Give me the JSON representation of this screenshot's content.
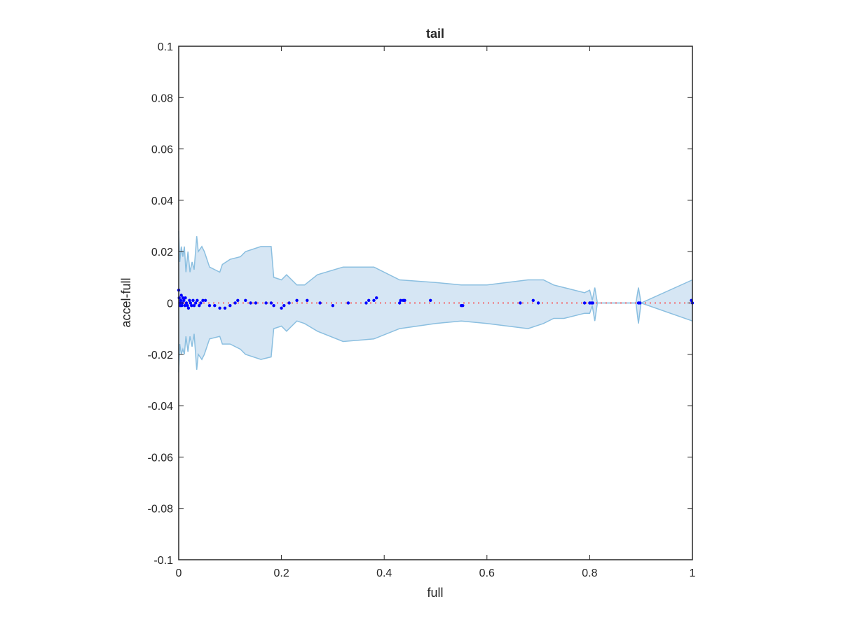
{
  "chart_data": {
    "type": "scatter",
    "title": "tail",
    "xlabel": "full",
    "ylabel": "accel-full",
    "xlim": [
      0,
      1
    ],
    "ylim": [
      -0.1,
      0.1
    ],
    "xticks": [
      0,
      0.2,
      0.4,
      0.6,
      0.8,
      1
    ],
    "xtick_labels": [
      "0",
      "0.2",
      "0.4",
      "0.6",
      "0.8",
      "1"
    ],
    "yticks": [
      -0.1,
      -0.08,
      -0.06,
      -0.04,
      -0.02,
      0,
      0.02,
      0.04,
      0.06,
      0.08,
      0.1
    ],
    "ytick_labels": [
      "-0.1",
      "-0.08",
      "-0.06",
      "-0.04",
      "-0.02",
      "0",
      "0.02",
      "0.04",
      "0.06",
      "0.08",
      "0.1"
    ],
    "grid": false,
    "colors": {
      "points": "#0000ff",
      "band_fill": "#d6e6f4",
      "band_edge": "#8bbfe0",
      "zero_line": "#ff3333",
      "axes": "#262626"
    },
    "zero_line": {
      "y": 0,
      "style": "dotted"
    },
    "band_upper": [
      [
        0,
        0.028
      ],
      [
        0.002,
        0.016
      ],
      [
        0.005,
        0.022
      ],
      [
        0.008,
        0.018
      ],
      [
        0.011,
        0.022
      ],
      [
        0.014,
        0.012
      ],
      [
        0.018,
        0.02
      ],
      [
        0.022,
        0.012
      ],
      [
        0.026,
        0.016
      ],
      [
        0.03,
        0.013
      ],
      [
        0.035,
        0.026
      ],
      [
        0.038,
        0.02
      ],
      [
        0.045,
        0.022
      ],
      [
        0.05,
        0.02
      ],
      [
        0.06,
        0.014
      ],
      [
        0.08,
        0.012
      ],
      [
        0.085,
        0.015
      ],
      [
        0.1,
        0.017
      ],
      [
        0.12,
        0.018
      ],
      [
        0.13,
        0.02
      ],
      [
        0.16,
        0.022
      ],
      [
        0.18,
        0.022
      ],
      [
        0.185,
        0.01
      ],
      [
        0.2,
        0.009
      ],
      [
        0.21,
        0.011
      ],
      [
        0.23,
        0.007
      ],
      [
        0.245,
        0.007
      ],
      [
        0.27,
        0.011
      ],
      [
        0.32,
        0.014
      ],
      [
        0.38,
        0.014
      ],
      [
        0.43,
        0.009
      ],
      [
        0.5,
        0.008
      ],
      [
        0.55,
        0.007
      ],
      [
        0.6,
        0.007
      ],
      [
        0.68,
        0.009
      ],
      [
        0.71,
        0.009
      ],
      [
        0.73,
        0.007
      ],
      [
        0.75,
        0.006
      ],
      [
        0.79,
        0.004
      ],
      [
        0.8,
        0.005
      ],
      [
        0.805,
        0.001
      ],
      [
        0.81,
        0.006
      ],
      [
        0.815,
        0.0
      ],
      [
        0.89,
        0.0
      ],
      [
        0.895,
        0.006
      ],
      [
        0.9,
        0.0
      ],
      [
        1,
        0.009
      ]
    ],
    "band_lower": [
      [
        0,
        -0.027
      ],
      [
        0.002,
        -0.016
      ],
      [
        0.005,
        -0.02
      ],
      [
        0.008,
        -0.018
      ],
      [
        0.011,
        -0.02
      ],
      [
        0.014,
        -0.013
      ],
      [
        0.018,
        -0.019
      ],
      [
        0.022,
        -0.013
      ],
      [
        0.026,
        -0.017
      ],
      [
        0.03,
        -0.012
      ],
      [
        0.035,
        -0.026
      ],
      [
        0.038,
        -0.02
      ],
      [
        0.045,
        -0.022
      ],
      [
        0.05,
        -0.02
      ],
      [
        0.06,
        -0.014
      ],
      [
        0.08,
        -0.013
      ],
      [
        0.085,
        -0.016
      ],
      [
        0.1,
        -0.016
      ],
      [
        0.12,
        -0.018
      ],
      [
        0.13,
        -0.02
      ],
      [
        0.16,
        -0.022
      ],
      [
        0.18,
        -0.021
      ],
      [
        0.185,
        -0.01
      ],
      [
        0.2,
        -0.009
      ],
      [
        0.21,
        -0.011
      ],
      [
        0.23,
        -0.007
      ],
      [
        0.245,
        -0.008
      ],
      [
        0.27,
        -0.011
      ],
      [
        0.32,
        -0.015
      ],
      [
        0.38,
        -0.014
      ],
      [
        0.43,
        -0.01
      ],
      [
        0.5,
        -0.008
      ],
      [
        0.55,
        -0.007
      ],
      [
        0.6,
        -0.008
      ],
      [
        0.68,
        -0.01
      ],
      [
        0.71,
        -0.008
      ],
      [
        0.73,
        -0.006
      ],
      [
        0.75,
        -0.006
      ],
      [
        0.79,
        -0.004
      ],
      [
        0.8,
        -0.004
      ],
      [
        0.805,
        -0.001
      ],
      [
        0.81,
        -0.007
      ],
      [
        0.815,
        0.0
      ],
      [
        0.89,
        0.0
      ],
      [
        0.895,
        -0.008
      ],
      [
        0.9,
        0.0
      ],
      [
        1,
        -0.007
      ]
    ],
    "points": [
      [
        0,
        0.005
      ],
      [
        0.001,
        0.002
      ],
      [
        0.002,
        0.0
      ],
      [
        0.003,
        -0.001
      ],
      [
        0.004,
        0.001
      ],
      [
        0.005,
        0.003
      ],
      [
        0.006,
        -0.001
      ],
      [
        0.007,
        0.0
      ],
      [
        0.008,
        0.002
      ],
      [
        0.01,
        0.001
      ],
      [
        0.012,
        -0.001
      ],
      [
        0.013,
        0.002
      ],
      [
        0.015,
        0.0
      ],
      [
        0.017,
        -0.001
      ],
      [
        0.019,
        -0.002
      ],
      [
        0.021,
        0.001
      ],
      [
        0.023,
        0.0
      ],
      [
        0.025,
        -0.001
      ],
      [
        0.028,
        0.001
      ],
      [
        0.03,
        -0.001
      ],
      [
        0.033,
        0.0
      ],
      [
        0.036,
        0.001
      ],
      [
        0.04,
        -0.001
      ],
      [
        0.043,
        0.0
      ],
      [
        0.047,
        0.001
      ],
      [
        0.052,
        0.001
      ],
      [
        0.06,
        -0.001
      ],
      [
        0.07,
        -0.001
      ],
      [
        0.08,
        -0.002
      ],
      [
        0.09,
        -0.002
      ],
      [
        0.1,
        -0.001
      ],
      [
        0.11,
        0.0
      ],
      [
        0.115,
        0.001
      ],
      [
        0.13,
        0.001
      ],
      [
        0.14,
        0.0
      ],
      [
        0.15,
        0.0
      ],
      [
        0.17,
        0.0
      ],
      [
        0.18,
        0.0
      ],
      [
        0.185,
        -0.001
      ],
      [
        0.2,
        -0.002
      ],
      [
        0.205,
        -0.001
      ],
      [
        0.215,
        0.0
      ],
      [
        0.23,
        0.001
      ],
      [
        0.25,
        0.001
      ],
      [
        0.275,
        0.0
      ],
      [
        0.3,
        -0.001
      ],
      [
        0.33,
        0.0
      ],
      [
        0.365,
        0.0
      ],
      [
        0.37,
        0.001
      ],
      [
        0.38,
        0.001
      ],
      [
        0.385,
        0.002
      ],
      [
        0.43,
        0.0
      ],
      [
        0.432,
        0.001
      ],
      [
        0.437,
        0.001
      ],
      [
        0.44,
        0.001
      ],
      [
        0.49,
        0.001
      ],
      [
        0.55,
        -0.001
      ],
      [
        0.553,
        -0.001
      ],
      [
        0.665,
        0.0
      ],
      [
        0.69,
        0.001
      ],
      [
        0.7,
        0.0
      ],
      [
        0.79,
        0.0
      ],
      [
        0.8,
        0.0
      ],
      [
        0.803,
        0.0
      ],
      [
        0.806,
        0.0
      ],
      [
        0.895,
        0.0
      ],
      [
        0.898,
        0.0
      ],
      [
        0.998,
        0.001
      ],
      [
        1,
        0.0
      ]
    ]
  }
}
